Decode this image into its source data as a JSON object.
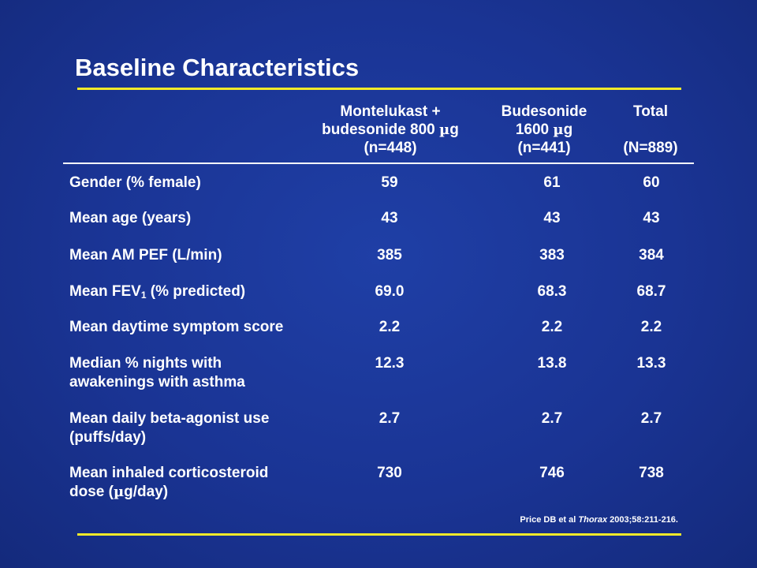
{
  "title": "Baseline Characteristics",
  "columns": [
    {
      "line1": "Montelukast +",
      "line2a": "budesonide 800 ",
      "line2_mu": "µ",
      "line2b": "g",
      "line3": "(n=448)"
    },
    {
      "line1": "Budesonide",
      "line2a": "1600 ",
      "line2_mu": "µ",
      "line2b": "g",
      "line3": "(n=441)"
    },
    {
      "line1": "Total",
      "line2a": "",
      "line2_mu": "",
      "line2b": "",
      "line3": "(N=889)"
    }
  ],
  "rows": [
    {
      "label": "Gender (% female)",
      "values": [
        "59",
        "61",
        "60"
      ]
    },
    {
      "label": "Mean age (years)",
      "values": [
        "43",
        "43",
        "43"
      ]
    },
    {
      "label": "Mean AM PEF (L/min)",
      "values": [
        "385",
        "383",
        "384"
      ]
    },
    {
      "label_a": "Mean FEV",
      "label_sub": "1",
      "label_b": " (% predicted)",
      "values": [
        "69.0",
        "68.3",
        "68.7"
      ]
    },
    {
      "label": "Mean daytime symptom score",
      "values": [
        "2.2",
        "2.2",
        "2.2"
      ]
    },
    {
      "label": "Median % nights with",
      "label_line2": "awakenings with asthma",
      "values": [
        "12.3",
        "13.8",
        "13.3"
      ]
    },
    {
      "label": "Mean daily beta-agonist use",
      "label_line2": "(puffs/day)",
      "values": [
        "2.7",
        "2.7",
        "2.7"
      ]
    },
    {
      "label": "Mean inhaled corticosteroid",
      "label_line2a": "dose (",
      "label_line2_mu": "µ",
      "label_line2b": "g/day)",
      "values": [
        "730",
        "746",
        "738"
      ]
    }
  ],
  "citation": {
    "prefix": "Price DB et al ",
    "journal": "Thorax",
    "suffix": " 2003;58:211-216."
  }
}
